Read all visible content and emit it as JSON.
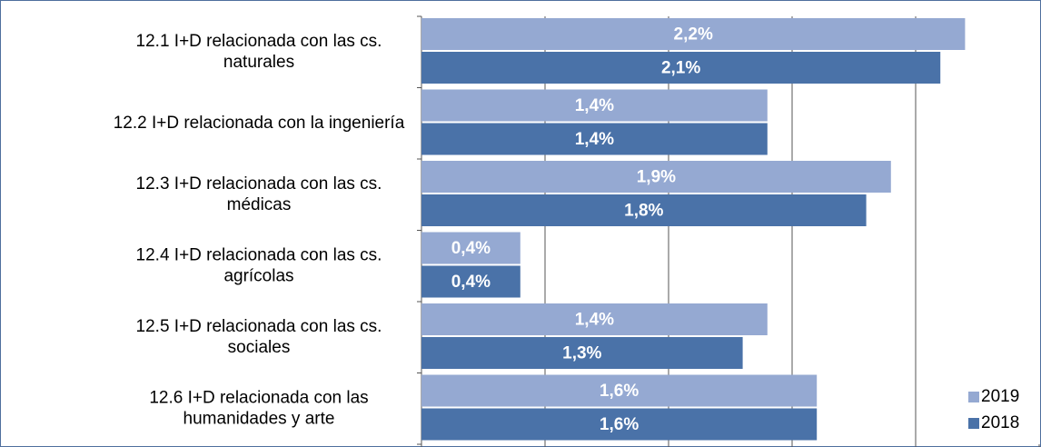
{
  "chart_data": {
    "type": "bar",
    "orientation": "horizontal",
    "categories": [
      [
        "12.1 I+D relacionada con las cs.",
        "naturales"
      ],
      [
        "12.2 I+D relacionada con la ingeniería"
      ],
      [
        "12.3 I+D relacionada con las cs.",
        "médicas"
      ],
      [
        "12.4 I+D relacionada con las cs.",
        "agrícolas"
      ],
      [
        "12.5 I+D relacionada con las cs.",
        "sociales"
      ],
      [
        "12.6 I+D relacionada con las",
        "humanidades y arte"
      ]
    ],
    "series": [
      {
        "name": "2019",
        "color": "#95a9d2",
        "values": [
          2.2,
          1.4,
          1.9,
          0.4,
          1.4,
          1.6
        ],
        "value_labels": [
          "2,2%",
          "1,4%",
          "1,9%",
          "0,4%",
          "1,4%",
          "1,6%"
        ]
      },
      {
        "name": "2018",
        "color": "#4a72a8",
        "values": [
          2.1,
          1.4,
          1.8,
          0.4,
          1.3,
          1.6
        ],
        "value_labels": [
          "2,1%",
          "1,4%",
          "1,8%",
          "0,4%",
          "1,3%",
          "1,6%"
        ]
      }
    ],
    "xlim": [
      0,
      2.5
    ],
    "xticks": [
      0,
      0.5,
      1,
      1.5,
      2,
      2.5
    ],
    "grid": true,
    "legend": "lower right"
  }
}
